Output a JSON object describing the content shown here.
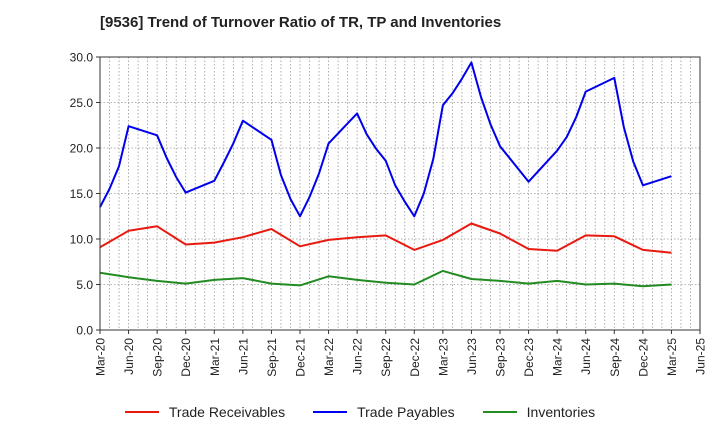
{
  "chart_data": {
    "type": "line",
    "title": "[9536]  Trend of Turnover Ratio of TR, TP and Inventories",
    "xlabel": "",
    "ylabel": "",
    "ylim": [
      0,
      30
    ],
    "yticks": [
      "0.0",
      "5.0",
      "10.0",
      "15.0",
      "20.0",
      "25.0",
      "30.0"
    ],
    "x_tick_labels": [
      "Mar-20",
      "Jun-20",
      "Sep-20",
      "Dec-20",
      "Mar-21",
      "Jun-21",
      "Sep-21",
      "Dec-21",
      "Mar-22",
      "Jun-22",
      "Sep-22",
      "Dec-22",
      "Mar-23",
      "Jun-23",
      "Sep-23",
      "Dec-23",
      "Mar-24",
      "Jun-24",
      "Sep-24",
      "Dec-24",
      "Mar-25",
      "Jun-25"
    ],
    "grid": true,
    "legend_position": "bottom",
    "series": [
      {
        "name": "Trade Receivables",
        "color": "#e8190f",
        "values": [
          [
            "Mar-20",
            9.1
          ],
          [
            "Jun-20",
            10.9
          ],
          [
            "Sep-20",
            11.4
          ],
          [
            "Dec-20",
            9.4
          ],
          [
            "Mar-21",
            9.6
          ],
          [
            "Jun-21",
            10.2
          ],
          [
            "Sep-21",
            11.1
          ],
          [
            "Dec-21",
            9.2
          ],
          [
            "Mar-22",
            9.9
          ],
          [
            "Jun-22",
            10.2
          ],
          [
            "Sep-22",
            10.4
          ],
          [
            "Dec-22",
            8.8
          ],
          [
            "Mar-23",
            9.9
          ],
          [
            "Jun-23",
            11.7
          ],
          [
            "Sep-23",
            10.6
          ],
          [
            "Dec-23",
            8.9
          ],
          [
            "Mar-24",
            8.7
          ],
          [
            "Jun-24",
            10.4
          ],
          [
            "Sep-24",
            10.3
          ],
          [
            "Dec-24",
            8.8
          ],
          [
            "Mar-25",
            8.5
          ]
        ]
      },
      {
        "name": "Trade Payables",
        "color": "#0000ee",
        "values": [
          [
            "Mar-20",
            13.5
          ],
          [
            "Apr-20",
            15.5
          ],
          [
            "May-20",
            18.0
          ],
          [
            "Jun-20",
            22.4
          ],
          [
            "Sep-20",
            21.4
          ],
          [
            "Oct-20",
            18.9
          ],
          [
            "Nov-20",
            16.8
          ],
          [
            "Dec-20",
            15.1
          ],
          [
            "Mar-21",
            16.4
          ],
          [
            "Apr-21",
            18.4
          ],
          [
            "May-21",
            20.5
          ],
          [
            "Jun-21",
            23.0
          ],
          [
            "Sep-21",
            20.9
          ],
          [
            "Oct-21",
            17.0
          ],
          [
            "Nov-21",
            14.4
          ],
          [
            "Dec-21",
            12.5
          ],
          [
            "Jan-22",
            14.6
          ],
          [
            "Feb-22",
            17.2
          ],
          [
            "Mar-22",
            20.5
          ],
          [
            "Jun-22",
            23.8
          ],
          [
            "Jul-22",
            21.5
          ],
          [
            "Aug-22",
            19.9
          ],
          [
            "Sep-22",
            18.6
          ],
          [
            "Oct-22",
            15.9
          ],
          [
            "Nov-22",
            14.1
          ],
          [
            "Dec-22",
            12.5
          ],
          [
            "Jan-23",
            15.0
          ],
          [
            "Feb-23",
            18.8
          ],
          [
            "Mar-23",
            24.7
          ],
          [
            "Apr-23",
            26.0
          ],
          [
            "May-23",
            27.6
          ],
          [
            "Jun-23",
            29.4
          ],
          [
            "Jul-23",
            25.6
          ],
          [
            "Aug-23",
            22.6
          ],
          [
            "Sep-23",
            20.2
          ],
          [
            "Dec-23",
            16.3
          ],
          [
            "Mar-24",
            19.7
          ],
          [
            "Apr-24",
            21.2
          ],
          [
            "May-24",
            23.4
          ],
          [
            "Jun-24",
            26.2
          ],
          [
            "Sep-24",
            27.7
          ],
          [
            "Oct-24",
            22.3
          ],
          [
            "Nov-24",
            18.5
          ],
          [
            "Dec-24",
            15.9
          ],
          [
            "Mar-25",
            16.9
          ]
        ]
      },
      {
        "name": "Inventories",
        "color": "#228b22",
        "values": [
          [
            "Mar-20",
            6.3
          ],
          [
            "Jun-20",
            5.8
          ],
          [
            "Sep-20",
            5.4
          ],
          [
            "Dec-20",
            5.1
          ],
          [
            "Mar-21",
            5.5
          ],
          [
            "Jun-21",
            5.7
          ],
          [
            "Sep-21",
            5.1
          ],
          [
            "Dec-21",
            4.9
          ],
          [
            "Mar-22",
            5.9
          ],
          [
            "Jun-22",
            5.5
          ],
          [
            "Sep-22",
            5.2
          ],
          [
            "Dec-22",
            5.0
          ],
          [
            "Mar-23",
            6.5
          ],
          [
            "Jun-23",
            5.6
          ],
          [
            "Sep-23",
            5.4
          ],
          [
            "Dec-23",
            5.1
          ],
          [
            "Mar-24",
            5.4
          ],
          [
            "Jun-24",
            5.0
          ],
          [
            "Sep-24",
            5.1
          ],
          [
            "Dec-24",
            4.8
          ],
          [
            "Mar-25",
            5.0
          ]
        ]
      }
    ]
  }
}
